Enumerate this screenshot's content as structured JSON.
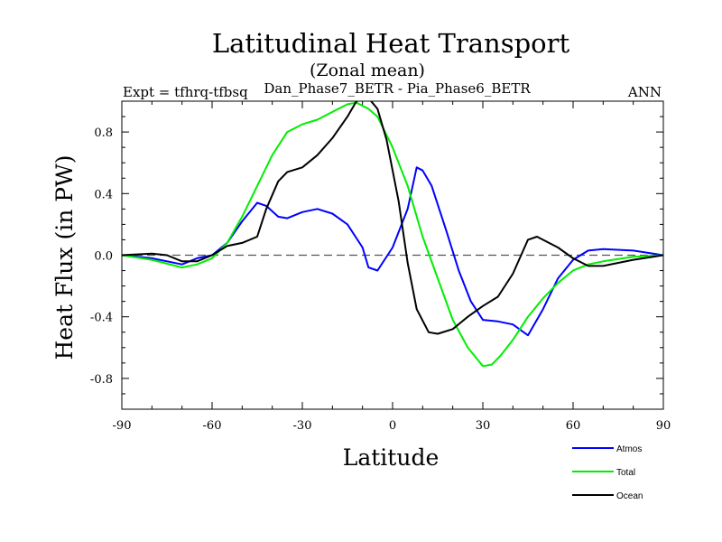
{
  "chart_data": {
    "type": "line",
    "title": "Latitudinal Heat Transport",
    "subtitle": "(Zonal mean)",
    "left_label": "Expt = tfhrq-tfbsq",
    "center_label": "Dan_Phase7_BETR - Pia_Phase6_BETR",
    "right_label": "ANN",
    "xlabel": "Latitude",
    "ylabel": "Heat Flux (in PW)",
    "xlim": [
      -90,
      90
    ],
    "ylim": [
      -1.0,
      1.0
    ],
    "xticks": [
      -90,
      -60,
      -30,
      0,
      30,
      60,
      90
    ],
    "xtick_labels": [
      "-90",
      "-60",
      "-30",
      "0",
      "30",
      "60",
      "90"
    ],
    "yticks": [
      -0.8,
      -0.4,
      0.0,
      0.4,
      0.8
    ],
    "ytick_labels": [
      "-0.8",
      "-0.4",
      "0.0",
      "0.4",
      "0.8"
    ],
    "zero_line": true,
    "legend_position": "bottom-right, below plot",
    "series": [
      {
        "name": "Atmos",
        "color": "#0000ff",
        "points": [
          [
            -90,
            0.0
          ],
          [
            -80,
            -0.02
          ],
          [
            -70,
            -0.06
          ],
          [
            -65,
            -0.02
          ],
          [
            -60,
            0.0
          ],
          [
            -55,
            0.08
          ],
          [
            -50,
            0.22
          ],
          [
            -45,
            0.34
          ],
          [
            -42,
            0.32
          ],
          [
            -38,
            0.25
          ],
          [
            -35,
            0.24
          ],
          [
            -30,
            0.28
          ],
          [
            -25,
            0.3
          ],
          [
            -20,
            0.27
          ],
          [
            -15,
            0.2
          ],
          [
            -10,
            0.05
          ],
          [
            -8,
            -0.08
          ],
          [
            -5,
            -0.1
          ],
          [
            0,
            0.05
          ],
          [
            5,
            0.3
          ],
          [
            8,
            0.57
          ],
          [
            10,
            0.55
          ],
          [
            13,
            0.45
          ],
          [
            18,
            0.15
          ],
          [
            22,
            -0.1
          ],
          [
            26,
            -0.3
          ],
          [
            30,
            -0.42
          ],
          [
            35,
            -0.43
          ],
          [
            40,
            -0.45
          ],
          [
            45,
            -0.52
          ],
          [
            50,
            -0.35
          ],
          [
            55,
            -0.15
          ],
          [
            60,
            -0.03
          ],
          [
            65,
            0.03
          ],
          [
            70,
            0.04
          ],
          [
            80,
            0.03
          ],
          [
            90,
            0.0
          ]
        ]
      },
      {
        "name": "Total",
        "color": "#00ee00",
        "points": [
          [
            -90,
            0.0
          ],
          [
            -80,
            -0.03
          ],
          [
            -70,
            -0.08
          ],
          [
            -65,
            -0.06
          ],
          [
            -60,
            -0.02
          ],
          [
            -55,
            0.08
          ],
          [
            -50,
            0.25
          ],
          [
            -45,
            0.45
          ],
          [
            -40,
            0.65
          ],
          [
            -35,
            0.8
          ],
          [
            -30,
            0.85
          ],
          [
            -25,
            0.88
          ],
          [
            -20,
            0.93
          ],
          [
            -15,
            0.98
          ],
          [
            -12,
            0.99
          ],
          [
            -8,
            0.95
          ],
          [
            -5,
            0.9
          ],
          [
            0,
            0.7
          ],
          [
            5,
            0.45
          ],
          [
            10,
            0.12
          ],
          [
            15,
            -0.15
          ],
          [
            20,
            -0.42
          ],
          [
            25,
            -0.6
          ],
          [
            30,
            -0.72
          ],
          [
            33,
            -0.71
          ],
          [
            36,
            -0.65
          ],
          [
            40,
            -0.55
          ],
          [
            45,
            -0.4
          ],
          [
            50,
            -0.28
          ],
          [
            55,
            -0.18
          ],
          [
            60,
            -0.1
          ],
          [
            65,
            -0.06
          ],
          [
            70,
            -0.04
          ],
          [
            80,
            -0.01
          ],
          [
            90,
            0.0
          ]
        ]
      },
      {
        "name": "Ocean",
        "color": "#000000",
        "points": [
          [
            -90,
            0.0
          ],
          [
            -80,
            0.01
          ],
          [
            -75,
            0.0
          ],
          [
            -70,
            -0.04
          ],
          [
            -65,
            -0.04
          ],
          [
            -60,
            0.0
          ],
          [
            -55,
            0.06
          ],
          [
            -50,
            0.08
          ],
          [
            -45,
            0.12
          ],
          [
            -42,
            0.3
          ],
          [
            -38,
            0.48
          ],
          [
            -35,
            0.54
          ],
          [
            -30,
            0.57
          ],
          [
            -25,
            0.65
          ],
          [
            -20,
            0.76
          ],
          [
            -15,
            0.9
          ],
          [
            -12,
            1.0
          ],
          [
            -8,
            1.02
          ],
          [
            -5,
            0.95
          ],
          [
            -2,
            0.75
          ],
          [
            2,
            0.35
          ],
          [
            5,
            -0.05
          ],
          [
            8,
            -0.35
          ],
          [
            12,
            -0.5
          ],
          [
            15,
            -0.51
          ],
          [
            20,
            -0.48
          ],
          [
            25,
            -0.4
          ],
          [
            30,
            -0.33
          ],
          [
            35,
            -0.27
          ],
          [
            40,
            -0.12
          ],
          [
            45,
            0.1
          ],
          [
            48,
            0.12
          ],
          [
            55,
            0.05
          ],
          [
            60,
            -0.02
          ],
          [
            65,
            -0.07
          ],
          [
            70,
            -0.07
          ],
          [
            80,
            -0.03
          ],
          [
            90,
            0.0
          ]
        ]
      }
    ]
  }
}
